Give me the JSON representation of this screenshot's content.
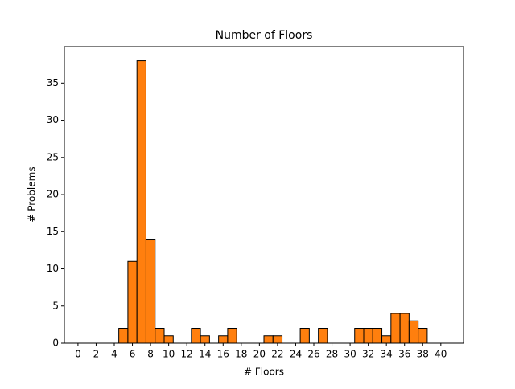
{
  "chart_data": {
    "type": "histogram",
    "title": "Number of Floors",
    "x_label": "# Floors",
    "y_label": "# Problems",
    "bins": [
      -0.5,
      0.5,
      1.5,
      2.5,
      3.5,
      4.5,
      5.5,
      6.5,
      7.5,
      8.5,
      9.5,
      10.5,
      11.5,
      12.5,
      13.5,
      14.5,
      15.5,
      16.5,
      17.5,
      18.5,
      19.5,
      20.5,
      21.5,
      22.5,
      23.5,
      24.5,
      25.5,
      26.5,
      27.5,
      28.5,
      29.5,
      30.5,
      31.5,
      32.5,
      33.5,
      34.5,
      35.5,
      36.5,
      37.5,
      38.5,
      39.5,
      40.5
    ],
    "values": [
      0,
      0,
      0,
      0,
      0,
      2,
      11,
      38,
      14,
      2,
      1,
      0,
      0,
      2,
      1,
      0,
      1,
      2,
      0,
      0,
      0,
      1,
      1,
      0,
      0,
      2,
      0,
      2,
      0,
      0,
      0,
      2,
      2,
      2,
      1,
      4,
      4,
      3,
      2,
      0,
      0
    ],
    "color": "#ff7f0e",
    "edgecolor": "#000000",
    "xlim": [
      -1.5,
      42.5
    ],
    "ylim": [
      0,
      39.9
    ],
    "xticks": [
      0,
      2,
      4,
      6,
      8,
      10,
      12,
      14,
      16,
      18,
      20,
      22,
      24,
      26,
      28,
      30,
      32,
      34,
      36,
      38,
      40
    ],
    "yticks": [
      0,
      5,
      10,
      15,
      20,
      25,
      30,
      35
    ]
  }
}
